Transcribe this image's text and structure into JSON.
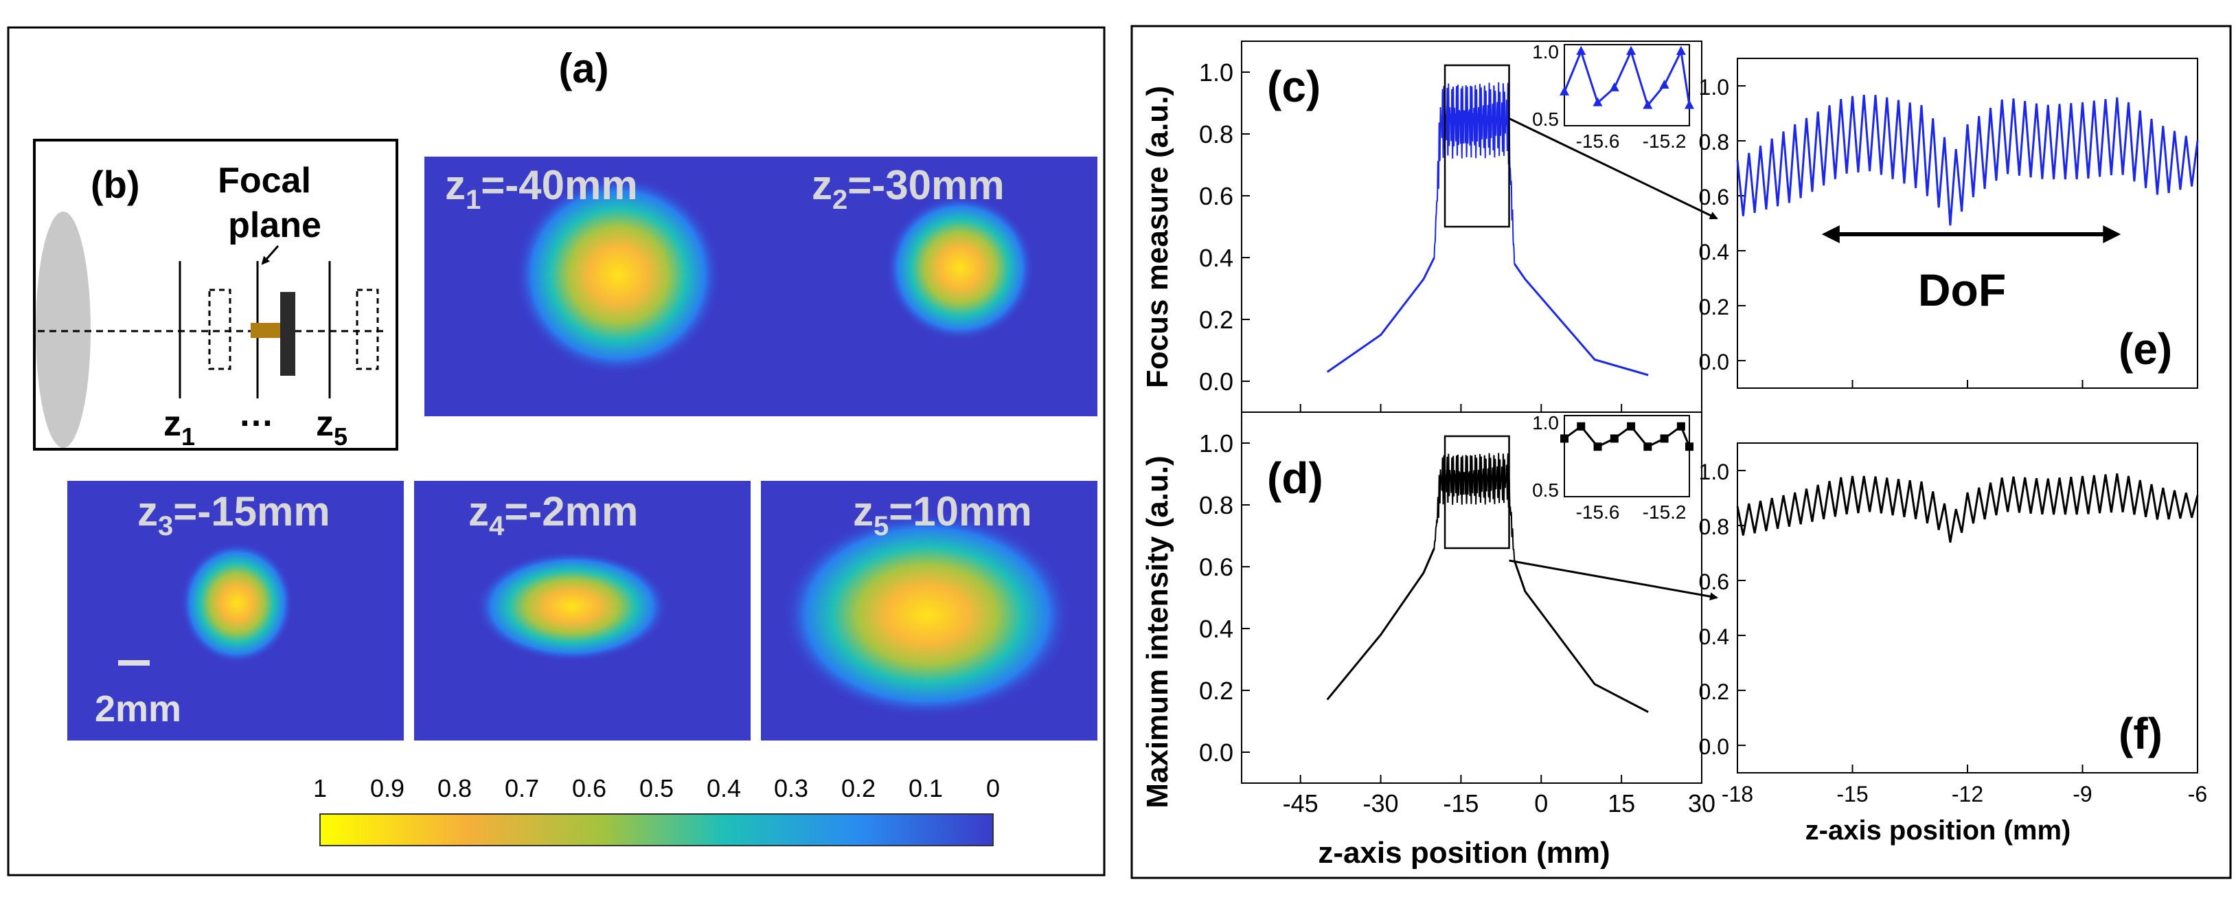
{
  "figure": {
    "panel_a": {
      "label": "(a)",
      "images": [
        {
          "label": "z1=-40mm",
          "sub": "1",
          "value": "=-40mm"
        },
        {
          "label": "z2=-30mm",
          "sub": "2",
          "value": "=-30mm"
        },
        {
          "label": "z3=-15mm",
          "sub": "3",
          "value": "=-15mm"
        },
        {
          "label": "z4=-2mm",
          "sub": "4",
          "value": "=-2mm"
        },
        {
          "label": "z5=10mm",
          "sub": "5",
          "value": "=10mm"
        }
      ],
      "scale_bar": "2mm",
      "colorbar": {
        "ticks": [
          "1",
          "0.9",
          "0.8",
          "0.7",
          "0.6",
          "0.5",
          "0.4",
          "0.3",
          "0.2",
          "0.1",
          "0"
        ],
        "colors": [
          "#ffff00",
          "#f5b03a",
          "#a3c33f",
          "#1fbfb8",
          "#2a8cf0",
          "#3a3cc8"
        ]
      }
    },
    "panel_b": {
      "label": "(b)",
      "focal_line1": "Focal",
      "focal_line2": "plane",
      "z_first": "z",
      "z_first_sub": "1",
      "ellipsis": "…",
      "z_last": "z",
      "z_last_sub": "5"
    },
    "panel_c": {
      "label": "(c)"
    },
    "panel_d": {
      "label": "(d)"
    },
    "panel_e": {
      "label": "(e)",
      "annotation": "DoF"
    },
    "panel_f": {
      "label": "(f)"
    },
    "axis": {
      "ylabel_top": "Focus measure (a.u.)",
      "ylabel_bottom": "Maximum intensity (a.u.)",
      "xlabel_left": "z-axis position (mm)",
      "xlabel_right": "z-axis position (mm)"
    }
  },
  "chart_data": [
    {
      "id": "c",
      "type": "line",
      "title": "(c)",
      "color": "#1d28e6",
      "xlabel": "",
      "ylabel": "Focus measure (a.u.)",
      "xlim": [
        -56,
        30
      ],
      "ylim": [
        -0.1,
        1.1
      ],
      "xticks": [
        -45,
        -30,
        -15,
        0,
        15,
        30
      ],
      "yticks": [
        "0.0",
        "0.2",
        "0.4",
        "0.6",
        "0.8",
        "1.0"
      ],
      "outer_x": [
        -40,
        -30,
        -22,
        -20,
        -5,
        -3,
        10,
        20
      ],
      "outer_y": [
        0.03,
        0.15,
        0.33,
        0.4,
        0.38,
        0.33,
        0.07,
        0.02
      ],
      "dense_range": [
        -20,
        -5
      ],
      "dense_level": [
        0.72,
        0.97
      ],
      "zoom_box": {
        "x": [
          -18,
          -6
        ],
        "y": [
          0.5,
          1.0
        ]
      }
    },
    {
      "id": "d",
      "type": "line",
      "title": "(d)",
      "color": "#000000",
      "xlabel": "z-axis position (mm)",
      "ylabel": "Maximum intensity (a.u.)",
      "xlim": [
        -56,
        30
      ],
      "ylim": [
        -0.1,
        1.1
      ],
      "xticks": [
        -45,
        -30,
        -15,
        0,
        15,
        30
      ],
      "yticks": [
        "0.0",
        "0.2",
        "0.4",
        "0.6",
        "0.8",
        "1.0"
      ],
      "outer_x": [
        -40,
        -30,
        -22,
        -20,
        -5,
        -3,
        10,
        20
      ],
      "outer_y": [
        0.17,
        0.38,
        0.58,
        0.66,
        0.62,
        0.52,
        0.22,
        0.13
      ],
      "dense_range": [
        -20,
        -5
      ],
      "dense_level": [
        0.8,
        0.97
      ],
      "zoom_box": {
        "x": [
          -18,
          -6
        ],
        "y": [
          0.66,
          1.0
        ]
      }
    },
    {
      "id": "c_inset",
      "type": "line",
      "color": "#1d28e6",
      "xlim": [
        -15.8,
        -15.05
      ],
      "ylim": [
        0.45,
        1.05
      ],
      "xticks": [
        "-15.6",
        "-15.2"
      ],
      "yticks": [
        "0.5",
        "1.0"
      ],
      "x": [
        -15.8,
        -15.7,
        -15.6,
        -15.5,
        -15.4,
        -15.3,
        -15.2,
        -15.1,
        -15.05
      ],
      "y": [
        0.7,
        1.0,
        0.62,
        0.73,
        1.0,
        0.6,
        0.75,
        1.0,
        0.6
      ]
    },
    {
      "id": "d_inset",
      "type": "line",
      "color": "#000000",
      "xlim": [
        -15.8,
        -15.05
      ],
      "ylim": [
        0.45,
        1.05
      ],
      "xticks": [
        "-15.6",
        "-15.2"
      ],
      "yticks": [
        "0.5",
        "1.0"
      ],
      "x": [
        -15.8,
        -15.7,
        -15.6,
        -15.5,
        -15.4,
        -15.3,
        -15.2,
        -15.1,
        -15.05
      ],
      "y": [
        0.88,
        0.97,
        0.82,
        0.88,
        0.97,
        0.82,
        0.88,
        0.97,
        0.82
      ]
    },
    {
      "id": "e",
      "type": "line",
      "title": "(e)",
      "color": "#1d28e6",
      "xlim": [
        -18,
        -6
      ],
      "ylim": [
        -0.1,
        1.1
      ],
      "xticks": [
        -18,
        -15,
        -12,
        -9,
        -6
      ],
      "yticks": [
        "0.0",
        "0.2",
        "0.4",
        "0.6",
        "0.8",
        "1.0"
      ],
      "period_mm": 0.3,
      "envelope_x": [
        -18,
        -16.5,
        -15.2,
        -14.5,
        -13.2,
        -12.7,
        -12.4,
        -12.0,
        -11.0,
        -10.0,
        -9.0,
        -8.0,
        -7.0,
        -6.0
      ],
      "envelope_max": [
        0.73,
        0.86,
        0.96,
        0.97,
        0.93,
        0.85,
        0.74,
        0.86,
        0.96,
        0.93,
        0.94,
        0.96,
        0.86,
        0.8
      ],
      "envelope_min": [
        0.52,
        0.58,
        0.68,
        0.69,
        0.62,
        0.55,
        0.48,
        0.58,
        0.68,
        0.66,
        0.66,
        0.68,
        0.6,
        0.64
      ],
      "dof_arrow": [
        -15.8,
        -8.0
      ],
      "dof_level": 0.46
    },
    {
      "id": "f",
      "type": "line",
      "title": "(f)",
      "color": "#000000",
      "xlabel": "z-axis position (mm)",
      "xlim": [
        -18,
        -6
      ],
      "ylim": [
        -0.1,
        1.1
      ],
      "xticks": [
        -18,
        -15,
        -12,
        -9,
        -6
      ],
      "yticks": [
        "0.0",
        "0.2",
        "0.4",
        "0.6",
        "0.8",
        "1.0"
      ],
      "period_mm": 0.3,
      "envelope_x": [
        -18,
        -16.5,
        -15.2,
        -14.5,
        -13.2,
        -12.7,
        -12.4,
        -12.0,
        -11.0,
        -10.0,
        -9.0,
        -8.0,
        -7.0,
        -6.0
      ],
      "envelope_max": [
        0.87,
        0.92,
        0.98,
        0.98,
        0.96,
        0.9,
        0.84,
        0.92,
        0.98,
        0.97,
        0.98,
        0.99,
        0.94,
        0.91
      ],
      "envelope_min": [
        0.76,
        0.8,
        0.84,
        0.85,
        0.82,
        0.78,
        0.73,
        0.8,
        0.85,
        0.84,
        0.84,
        0.85,
        0.82,
        0.83
      ]
    }
  ]
}
